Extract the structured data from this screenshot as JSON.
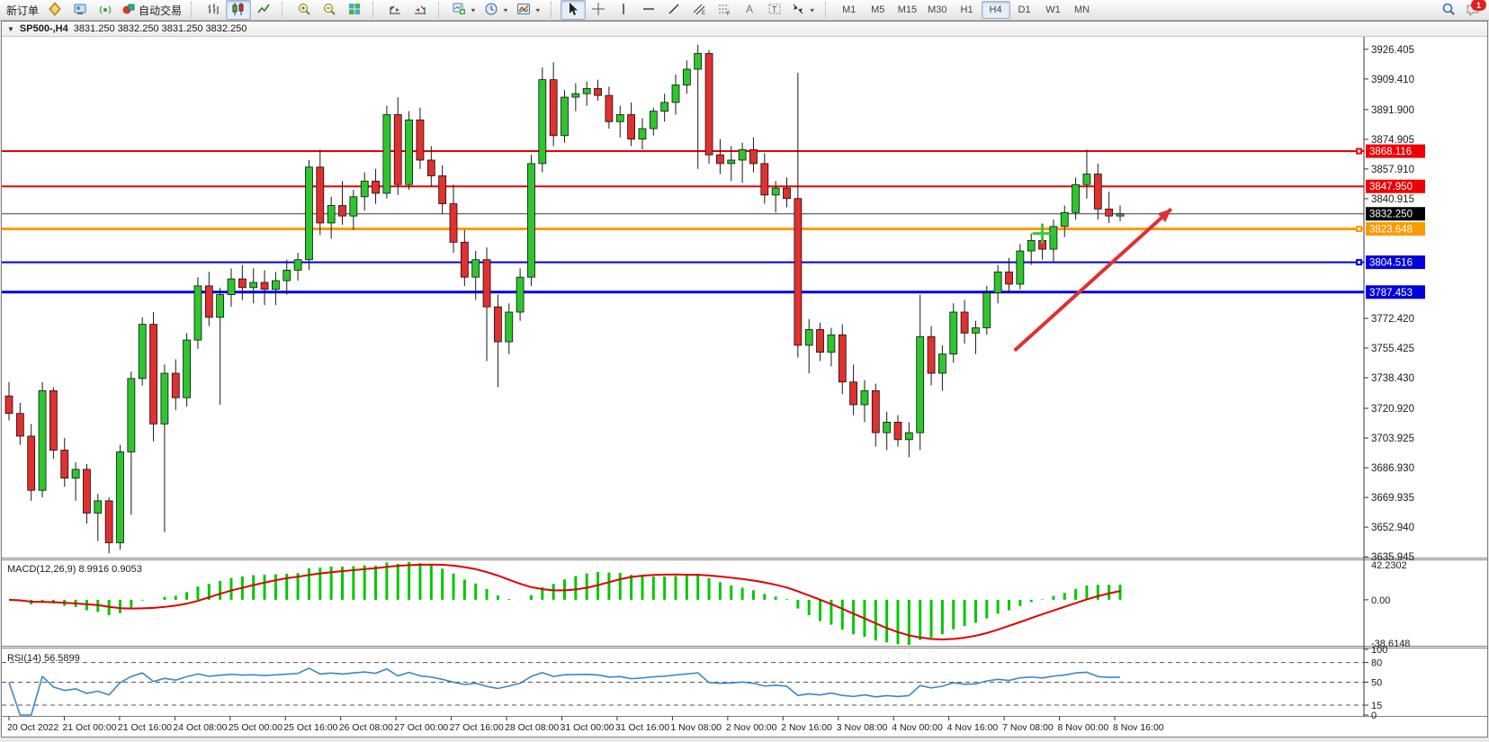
{
  "toolbar": {
    "new_order_label": "新订单",
    "autotrading_label": "自动交易",
    "timeframes": [
      "M1",
      "M5",
      "M15",
      "M30",
      "H1",
      "H4",
      "D1",
      "W1",
      "MN"
    ],
    "active_timeframe": "H4",
    "notification_count": "1"
  },
  "chart": {
    "symbol_period": "SP500-,H4",
    "quotes": "3831.250 3832.250 3831.250 3832.250"
  },
  "chart_data": {
    "type": "candlestick",
    "symbol": "SP500-",
    "timeframe": "H4",
    "price_axis_ticks": [
      3926.405,
      3909.41,
      3891.9,
      3874.905,
      3857.91,
      3840.915,
      3772.42,
      3755.425,
      3738.43,
      3720.92,
      3703.925,
      3686.93,
      3669.935,
      3652.94,
      3635.945
    ],
    "price_range": {
      "top": 3933.0,
      "bottom": 3636.0
    },
    "time_labels": [
      "20 Oct 2022",
      "21 Oct 00:00",
      "21 Oct 16:00",
      "24 Oct 08:00",
      "25 Oct 00:00",
      "25 Oct 16:00",
      "26 Oct 08:00",
      "27 Oct 00:00",
      "27 Oct 16:00",
      "28 Oct 08:00",
      "31 Oct 00:00",
      "31 Oct 16:00",
      "1 Nov 08:00",
      "2 Nov 00:00",
      "2 Nov 16:00",
      "3 Nov 08:00",
      "4 Nov 00:00",
      "4 Nov 16:00",
      "7 Nov 08:00",
      "8 Nov 00:00",
      "8 Nov 16:00"
    ],
    "candles": [
      [
        3728,
        3736,
        3714,
        3718
      ],
      [
        3718,
        3724,
        3700,
        3705
      ],
      [
        3705,
        3712,
        3668,
        3674
      ],
      [
        3674,
        3736,
        3670,
        3731
      ],
      [
        3731,
        3733,
        3692,
        3697
      ],
      [
        3697,
        3704,
        3676,
        3681
      ],
      [
        3681,
        3690,
        3668,
        3686
      ],
      [
        3686,
        3689,
        3655,
        3661
      ],
      [
        3661,
        3672,
        3645,
        3668
      ],
      [
        3668,
        3670,
        3638,
        3644
      ],
      [
        3644,
        3700,
        3640,
        3696
      ],
      [
        3696,
        3742,
        3660,
        3738
      ],
      [
        3738,
        3773,
        3734,
        3769
      ],
      [
        3769,
        3776,
        3702,
        3712
      ],
      [
        3712,
        3746,
        3650,
        3741
      ],
      [
        3741,
        3749,
        3720,
        3727
      ],
      [
        3727,
        3764,
        3722,
        3760
      ],
      [
        3760,
        3796,
        3755,
        3791
      ],
      [
        3791,
        3799,
        3768,
        3773
      ],
      [
        3773,
        3790,
        3723,
        3786
      ],
      [
        3786,
        3801,
        3779,
        3795
      ],
      [
        3795,
        3803,
        3783,
        3790
      ],
      [
        3790,
        3801,
        3781,
        3793
      ],
      [
        3793,
        3800,
        3780,
        3789
      ],
      [
        3789,
        3799,
        3780,
        3794
      ],
      [
        3794,
        3806,
        3786,
        3800
      ],
      [
        3800,
        3810,
        3794,
        3806
      ],
      [
        3806,
        3863,
        3800,
        3859
      ],
      [
        3859,
        3869,
        3820,
        3827
      ],
      [
        3827,
        3842,
        3818,
        3837
      ],
      [
        3837,
        3851,
        3826,
        3831
      ],
      [
        3831,
        3846,
        3823,
        3842
      ],
      [
        3842,
        3856,
        3834,
        3851
      ],
      [
        3851,
        3858,
        3838,
        3844
      ],
      [
        3844,
        3894,
        3841,
        3889
      ],
      [
        3889,
        3899,
        3843,
        3849
      ],
      [
        3849,
        3891,
        3846,
        3886
      ],
      [
        3886,
        3893,
        3858,
        3863
      ],
      [
        3863,
        3871,
        3848,
        3854
      ],
      [
        3854,
        3860,
        3832,
        3838
      ],
      [
        3838,
        3849,
        3810,
        3816
      ],
      [
        3816,
        3823,
        3791,
        3796
      ],
      [
        3796,
        3811,
        3783,
        3806
      ],
      [
        3806,
        3813,
        3748,
        3779
      ],
      [
        3779,
        3786,
        3733,
        3759
      ],
      [
        3759,
        3781,
        3752,
        3776
      ],
      [
        3776,
        3801,
        3771,
        3796
      ],
      [
        3796,
        3866,
        3791,
        3861
      ],
      [
        3861,
        3916,
        3856,
        3909
      ],
      [
        3909,
        3919,
        3871,
        3877
      ],
      [
        3877,
        3903,
        3873,
        3899
      ],
      [
        3899,
        3907,
        3891,
        3901
      ],
      [
        3901,
        3908,
        3894,
        3904
      ],
      [
        3904,
        3909,
        3897,
        3900
      ],
      [
        3900,
        3905,
        3881,
        3885
      ],
      [
        3885,
        3894,
        3876,
        3889
      ],
      [
        3889,
        3896,
        3871,
        3875
      ],
      [
        3875,
        3887,
        3869,
        3881
      ],
      [
        3881,
        3893,
        3877,
        3891
      ],
      [
        3891,
        3901,
        3885,
        3896
      ],
      [
        3896,
        3912,
        3889,
        3906
      ],
      [
        3906,
        3920,
        3901,
        3915
      ],
      [
        3915,
        3929,
        3858,
        3924
      ],
      [
        3924,
        3926,
        3861,
        3866
      ],
      [
        3866,
        3875,
        3855,
        3861
      ],
      [
        3861,
        3871,
        3851,
        3863
      ],
      [
        3863,
        3873,
        3850,
        3869
      ],
      [
        3869,
        3876,
        3856,
        3861
      ],
      [
        3861,
        3867,
        3838,
        3843
      ],
      [
        3843,
        3851,
        3833,
        3847
      ],
      [
        3847,
        3853,
        3836,
        3841
      ],
      [
        3841,
        3913,
        3750,
        3757
      ],
      [
        3757,
        3772,
        3741,
        3766
      ],
      [
        3766,
        3770,
        3748,
        3753
      ],
      [
        3753,
        3767,
        3745,
        3763
      ],
      [
        3763,
        3769,
        3729,
        3736
      ],
      [
        3736,
        3746,
        3717,
        3723
      ],
      [
        3723,
        3737,
        3713,
        3731
      ],
      [
        3731,
        3735,
        3699,
        3707
      ],
      [
        3707,
        3719,
        3697,
        3713
      ],
      [
        3713,
        3717,
        3699,
        3703
      ],
      [
        3703,
        3713,
        3693,
        3707
      ],
      [
        3707,
        3786,
        3697,
        3762
      ],
      [
        3762,
        3768,
        3734,
        3741
      ],
      [
        3741,
        3757,
        3731,
        3752
      ],
      [
        3752,
        3781,
        3747,
        3776
      ],
      [
        3776,
        3783,
        3758,
        3764
      ],
      [
        3764,
        3771,
        3752,
        3767
      ],
      [
        3767,
        3791,
        3763,
        3787
      ],
      [
        3787,
        3803,
        3781,
        3799
      ],
      [
        3799,
        3807,
        3787,
        3792
      ],
      [
        3792,
        3815,
        3789,
        3811
      ],
      [
        3811,
        3821,
        3803,
        3817
      ],
      [
        3817,
        3823,
        3806,
        3812
      ],
      [
        3812,
        3829,
        3805,
        3825
      ],
      [
        3825,
        3837,
        3819,
        3833
      ],
      [
        3833,
        3853,
        3829,
        3849
      ],
      [
        3849,
        3869,
        3841,
        3855
      ],
      [
        3855,
        3861,
        3829,
        3835
      ],
      [
        3835,
        3845,
        3827,
        3831
      ],
      [
        3831,
        3837,
        3828,
        3832.25
      ]
    ],
    "horizontal_lines": [
      {
        "price": 3868.116,
        "color": "#ee0000",
        "width": 2,
        "marker": true,
        "label_bg": "#ee0000"
      },
      {
        "price": 3847.95,
        "color": "#ee0000",
        "width": 2,
        "marker": false,
        "label_bg": "#ee0000"
      },
      {
        "price": 3832.25,
        "color": "#3a3a3a",
        "width": 1,
        "marker": false,
        "label_bg": "#000000"
      },
      {
        "price": 3823.648,
        "color": "#ff9900",
        "width": 3,
        "marker": true,
        "label_bg": "#ff9900"
      },
      {
        "price": 3804.516,
        "color": "#0000dd",
        "width": 2,
        "marker": true,
        "label_bg": "#0000dd"
      },
      {
        "price": 3787.453,
        "color": "#0000dd",
        "width": 3,
        "marker": false,
        "label_bg": "#0000dd"
      }
    ],
    "annotations": {
      "arrow": {
        "from": {
          "bar": 90.5,
          "price": 3754
        },
        "to": {
          "bar": 104.6,
          "price": 3835
        },
        "color": "#e03030"
      },
      "cross": {
        "bar": 93,
        "price": 3821,
        "color": "#32cd32"
      }
    },
    "macd": {
      "label": "MACD(12,26,9) 8.9916 0.9053",
      "fast": 12,
      "slow": 26,
      "signal_period": 9,
      "value": 8.9916,
      "signal_value": 0.9053,
      "axis_max": "42.2302",
      "axis_zero": "0.00",
      "axis_min": "-38.6148",
      "hist_color": "#00c800",
      "signal_color": "#e00000"
    },
    "rsi": {
      "label": "RSI(14) 56.5899",
      "period": 14,
      "value": 56.5899,
      "levels": [
        80,
        50,
        15
      ],
      "axis_labels": [
        100,
        80,
        50,
        15,
        0
      ],
      "line_color": "#3d85c8"
    },
    "colors": {
      "bull": "#2fc52f",
      "bear": "#e03030",
      "wick": "#1a1a1a",
      "axis": "#1a1a1a"
    }
  }
}
